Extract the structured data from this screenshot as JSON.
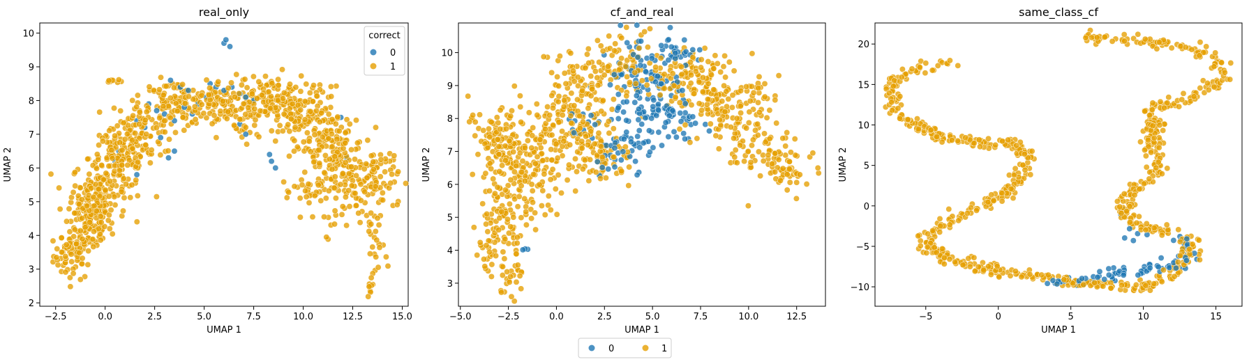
{
  "colors": {
    "class_0": "#1f77b4",
    "class_1": "#e69f00",
    "marker_edge": "#ffffff"
  },
  "legend_bottom": {
    "entries": [
      "0",
      "1"
    ],
    "placement": "bottom-center"
  },
  "chart_data": [
    {
      "type": "scatter",
      "title": "real_only",
      "xlabel": "UMAP 1",
      "ylabel": "UMAP 2",
      "xlim": [
        -3.3,
        15.3
      ],
      "ylim": [
        1.9,
        10.3
      ],
      "xticks": [
        -2.5,
        0.0,
        2.5,
        5.0,
        7.5,
        10.0,
        12.5,
        15.0
      ],
      "yticks": [
        2,
        3,
        4,
        5,
        6,
        7,
        8,
        9,
        10
      ],
      "xtick_labels": [
        "−2.5",
        "0.0",
        "2.5",
        "5.0",
        "7.5",
        "10.0",
        "12.5",
        "15.0"
      ],
      "ytick_labels": [
        "2",
        "3",
        "4",
        "5",
        "6",
        "7",
        "8",
        "9",
        "10"
      ],
      "grid": false,
      "legend": {
        "title": "correct",
        "entries": [
          "0",
          "1"
        ],
        "placement": "top-right"
      },
      "series": [
        {
          "name": "0",
          "points": [
            [
              6.1,
              9.8
            ],
            [
              6.0,
              9.7
            ],
            [
              6.3,
              9.6
            ],
            [
              3.3,
              8.6
            ],
            [
              3.8,
              8.4
            ],
            [
              4.2,
              8.3
            ],
            [
              5.3,
              8.5
            ],
            [
              5.6,
              8.4
            ],
            [
              6.0,
              8.3
            ],
            [
              6.4,
              8.4
            ],
            [
              6.8,
              8.2
            ],
            [
              7.1,
              8.1
            ],
            [
              7.5,
              8.0
            ],
            [
              2.2,
              7.9
            ],
            [
              2.6,
              7.7
            ],
            [
              3.0,
              7.6
            ],
            [
              3.5,
              7.4
            ],
            [
              4.0,
              7.8
            ],
            [
              4.4,
              7.6
            ],
            [
              2.0,
              7.2
            ],
            [
              1.6,
              7.4
            ],
            [
              1.2,
              7.1
            ],
            [
              3.2,
              6.3
            ],
            [
              3.5,
              6.5
            ],
            [
              2.8,
              6.9
            ],
            [
              0.7,
              6.5
            ],
            [
              0.5,
              6.2
            ],
            [
              8.4,
              6.2
            ],
            [
              8.6,
              6.0
            ],
            [
              8.3,
              6.4
            ],
            [
              11.9,
              7.5
            ],
            [
              12.2,
              6.3
            ],
            [
              7.1,
              7.0
            ],
            [
              6.8,
              7.3
            ],
            [
              1.6,
              5.8
            ],
            [
              4.7,
              7.9
            ],
            [
              5.1,
              8.1
            ]
          ]
        },
        {
          "name": "1",
          "clusters": [
            {
              "c": [
                -1.6,
                3.4
              ],
              "s": [
                0.5,
                0.35
              ],
              "n": 60
            },
            {
              "c": [
                -0.9,
                4.3
              ],
              "s": [
                0.6,
                0.45
              ],
              "n": 100
            },
            {
              "c": [
                -0.3,
                5.3
              ],
              "s": [
                0.7,
                0.45
              ],
              "n": 130
            },
            {
              "c": [
                0.8,
                6.3
              ],
              "s": [
                0.8,
                0.45
              ],
              "n": 120
            },
            {
              "c": [
                2.0,
                7.2
              ],
              "s": [
                0.8,
                0.45
              ],
              "n": 90
            },
            {
              "c": [
                3.5,
                7.9
              ],
              "s": [
                0.8,
                0.35
              ],
              "n": 90
            },
            {
              "c": [
                5.8,
                7.9
              ],
              "s": [
                1.0,
                0.35
              ],
              "n": 110
            },
            {
              "c": [
                8.3,
                8.1
              ],
              "s": [
                1.0,
                0.35
              ],
              "n": 110
            },
            {
              "c": [
                10.0,
                7.5
              ],
              "s": [
                1.0,
                0.45
              ],
              "n": 120
            },
            {
              "c": [
                11.3,
                6.6
              ],
              "s": [
                0.9,
                0.5
              ],
              "n": 110
            },
            {
              "c": [
                12.4,
                5.5
              ],
              "s": [
                0.9,
                0.55
              ],
              "n": 110
            },
            {
              "c": [
                13.8,
                5.7
              ],
              "s": [
                0.5,
                0.5
              ],
              "n": 55
            },
            {
              "c": [
                13.6,
                3.6
              ],
              "s": [
                0.25,
                0.7
              ],
              "n": 25
            },
            {
              "c": [
                13.4,
                2.4
              ],
              "s": [
                0.1,
                0.15
              ],
              "n": 8
            },
            {
              "c": [
                0.4,
                8.6
              ],
              "s": [
                0.25,
                0.05
              ],
              "n": 8
            },
            {
              "c": [
                7.0,
                7.2
              ],
              "s": [
                0.4,
                0.2
              ],
              "n": 20
            },
            {
              "c": [
                10.5,
                5.3
              ],
              "s": [
                0.5,
                0.3
              ],
              "n": 25
            }
          ]
        }
      ]
    },
    {
      "type": "scatter",
      "title": "cf_and_real",
      "xlabel": "UMAP 1",
      "ylabel": "UMAP 2",
      "xlim": [
        -5.1,
        14.0
      ],
      "ylim": [
        2.3,
        10.9
      ],
      "xticks": [
        -5.0,
        -2.5,
        0.0,
        2.5,
        5.0,
        7.5,
        10.0,
        12.5
      ],
      "yticks": [
        3,
        4,
        5,
        6,
        7,
        8,
        9,
        10
      ],
      "xtick_labels": [
        "−5.0",
        "−2.5",
        "0.0",
        "2.5",
        "5.0",
        "7.5",
        "10.0",
        "12.5"
      ],
      "ytick_labels": [
        "3",
        "4",
        "5",
        "6",
        "7",
        "8",
        "9",
        "10"
      ],
      "grid": false,
      "series": [
        {
          "name": "0",
          "clusters": [
            {
              "c": [
                4.7,
                9.2
              ],
              "s": [
                1.1,
                0.65
              ],
              "n": 110
            },
            {
              "c": [
                5.6,
                7.9
              ],
              "s": [
                0.9,
                0.4
              ],
              "n": 60
            },
            {
              "c": [
                3.3,
                7.1
              ],
              "s": [
                0.9,
                0.45
              ],
              "n": 40
            },
            {
              "c": [
                6.6,
                10.0
              ],
              "s": [
                0.7,
                0.15
              ],
              "n": 20
            },
            {
              "c": [
                1.6,
                8.0
              ],
              "s": [
                0.7,
                0.4
              ],
              "n": 14
            },
            {
              "c": [
                -1.6,
                4.0
              ],
              "s": [
                0.1,
                0.05
              ],
              "n": 3
            }
          ]
        },
        {
          "name": "1",
          "clusters": [
            {
              "c": [
                -3.0,
                7.2
              ],
              "s": [
                0.8,
                0.6
              ],
              "n": 120
            },
            {
              "c": [
                -2.7,
                5.0
              ],
              "s": [
                0.6,
                0.8
              ],
              "n": 90
            },
            {
              "c": [
                -2.4,
                3.2
              ],
              "s": [
                0.35,
                0.35
              ],
              "n": 30
            },
            {
              "c": [
                -1.2,
                6.6
              ],
              "s": [
                0.9,
                0.7
              ],
              "n": 110
            },
            {
              "c": [
                0.6,
                7.9
              ],
              "s": [
                1.0,
                0.6
              ],
              "n": 110
            },
            {
              "c": [
                1.2,
                9.1
              ],
              "s": [
                0.9,
                0.4
              ],
              "n": 70
            },
            {
              "c": [
                2.3,
                6.8
              ],
              "s": [
                0.8,
                0.6
              ],
              "n": 90
            },
            {
              "c": [
                3.6,
                9.6
              ],
              "s": [
                0.8,
                0.5
              ],
              "n": 60
            },
            {
              "c": [
                6.4,
                9.4
              ],
              "s": [
                1.0,
                0.45
              ],
              "n": 80
            },
            {
              "c": [
                8.0,
                8.7
              ],
              "s": [
                0.9,
                0.6
              ],
              "n": 90
            },
            {
              "c": [
                9.9,
                7.6
              ],
              "s": [
                0.9,
                0.6
              ],
              "n": 90
            },
            {
              "c": [
                11.8,
                6.6
              ],
              "s": [
                0.8,
                0.45
              ],
              "n": 70
            },
            {
              "c": [
                10.6,
                8.7
              ],
              "s": [
                0.5,
                0.3
              ],
              "n": 25
            },
            {
              "c": [
                -3.5,
                4.0
              ],
              "s": [
                0.3,
                0.3
              ],
              "n": 15
            }
          ]
        }
      ]
    },
    {
      "type": "scatter",
      "title": "same_class_cf",
      "xlabel": "UMAP 1",
      "ylabel": "UMAP 2",
      "xlim": [
        -8.5,
        16.8
      ],
      "ylim": [
        -12.4,
        22.6
      ],
      "xticks": [
        -5,
        0,
        5,
        10,
        15
      ],
      "yticks": [
        -10,
        -5,
        0,
        5,
        10,
        15,
        20
      ],
      "xtick_labels": [
        "−5",
        "0",
        "5",
        "10",
        "15"
      ],
      "ytick_labels": [
        "−10",
        "−5",
        "0",
        "5",
        "10",
        "15",
        "20"
      ],
      "grid": false,
      "series": [
        {
          "name": "0",
          "path_samples": [
            {
              "from": [
                5.0,
                -9.4
              ],
              "to": [
                13.0,
                -7.0
              ],
              "n": 60
            },
            {
              "from": [
                12.6,
                -4.0
              ],
              "to": [
                13.3,
                -6.5
              ],
              "n": 15
            },
            {
              "from": [
                8.8,
                -0.5
              ],
              "to": [
                9.4,
                -3.5
              ],
              "n": 8
            },
            {
              "from": [
                3.2,
                -9.3
              ],
              "to": [
                6.2,
                -9.6
              ],
              "n": 10
            }
          ]
        },
        {
          "name": "1",
          "path": [
            [
              -3.0,
              17.5
            ],
            [
              -4.8,
              17.3
            ],
            [
              -6.5,
              16.2
            ],
            [
              -7.5,
              14.5
            ],
            [
              -7.4,
              12.5
            ],
            [
              -6.2,
              10.5
            ],
            [
              -4.5,
              9.0
            ],
            [
              -2.5,
              8.0
            ],
            [
              -0.5,
              7.7
            ],
            [
              1.0,
              7.7
            ],
            [
              1.8,
              6.5
            ],
            [
              2.0,
              5.0
            ],
            [
              1.5,
              3.3
            ],
            [
              0.5,
              1.8
            ],
            [
              -0.8,
              0.3
            ],
            [
              -2.5,
              -1.2
            ],
            [
              -4.0,
              -2.5
            ],
            [
              -5.0,
              -4.0
            ],
            [
              -5.0,
              -5.0
            ],
            [
              -4.0,
              -6.2
            ],
            [
              -2.0,
              -7.3
            ],
            [
              0.0,
              -8.0
            ],
            [
              2.0,
              -8.5
            ],
            [
              4.0,
              -9.0
            ],
            [
              6.0,
              -9.5
            ],
            [
              8.0,
              -9.9
            ],
            [
              10.0,
              -10.2
            ],
            [
              11.5,
              -9.0
            ],
            [
              12.5,
              -7.5
            ],
            [
              13.2,
              -6.0
            ],
            [
              13.3,
              -4.5
            ],
            [
              12.0,
              -3.5
            ],
            [
              10.8,
              -2.8
            ],
            [
              9.8,
              -2.5
            ],
            [
              9.0,
              -1.5
            ],
            [
              8.8,
              0.0
            ],
            [
              9.0,
              1.5
            ],
            [
              9.8,
              2.5
            ],
            [
              10.8,
              3.5
            ],
            [
              11.0,
              5.5
            ],
            [
              10.5,
              7.5
            ],
            [
              10.8,
              9.5
            ],
            [
              10.3,
              11.5
            ],
            [
              11.0,
              12.5
            ],
            [
              13.0,
              13.0
            ],
            [
              14.5,
              14.5
            ],
            [
              15.5,
              16.0
            ],
            [
              15.2,
              17.8
            ],
            [
              13.5,
              19.5
            ],
            [
              11.5,
              20.0
            ],
            [
              9.0,
              20.5
            ],
            [
              6.0,
              21.0
            ]
          ],
          "n": 900,
          "jitter": 0.32
        }
      ]
    }
  ]
}
